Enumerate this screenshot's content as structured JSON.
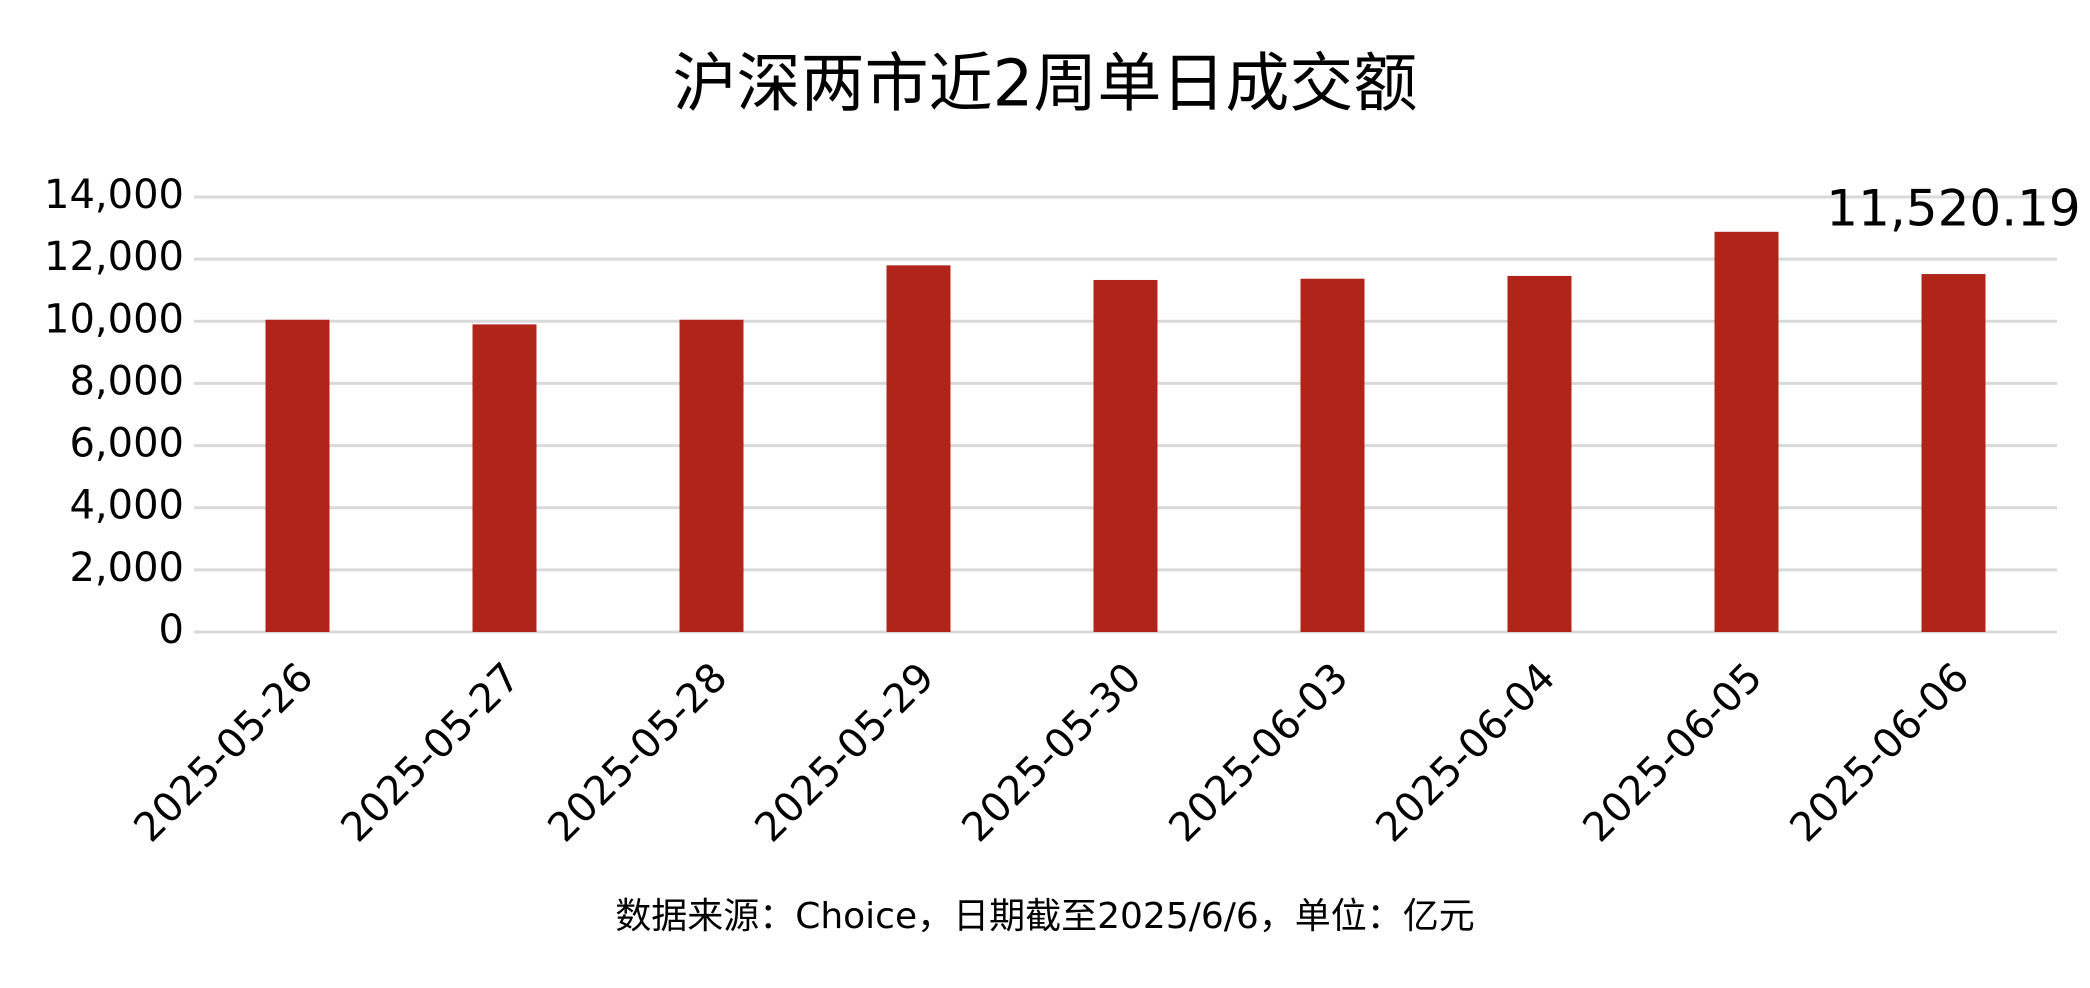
{
  "chart_data": {
    "type": "bar",
    "title": "沪深两市近2周单日成交额",
    "categories": [
      "2025-05-26",
      "2025-05-27",
      "2025-05-28",
      "2025-05-29",
      "2025-05-30",
      "2025-06-03",
      "2025-06-04",
      "2025-06-05",
      "2025-06-06"
    ],
    "values": [
      10050,
      9900,
      10050,
      11800,
      11330,
      11370,
      11460,
      12880,
      11520.19
    ],
    "value_labels": [
      null,
      null,
      null,
      null,
      null,
      null,
      null,
      null,
      "11,520.19"
    ],
    "color": "#b0241a",
    "ylim": [
      0,
      14000
    ],
    "yticks": [
      0,
      {
        "value": 2000,
        "label": "2,000"
      },
      {
        "value": 4000,
        "label": "4,000"
      },
      {
        "value": 6000,
        "label": "6,000"
      },
      {
        "value": 8000,
        "label": "8,000"
      },
      {
        "value": 10000,
        "label": "10,000"
      },
      {
        "value": 12000,
        "label": "12,000"
      },
      {
        "value": 14000,
        "label": "14,000"
      }
    ],
    "grid": true,
    "source": "数据来源：Choice，日期截至2025/6/6，单位：亿元"
  }
}
